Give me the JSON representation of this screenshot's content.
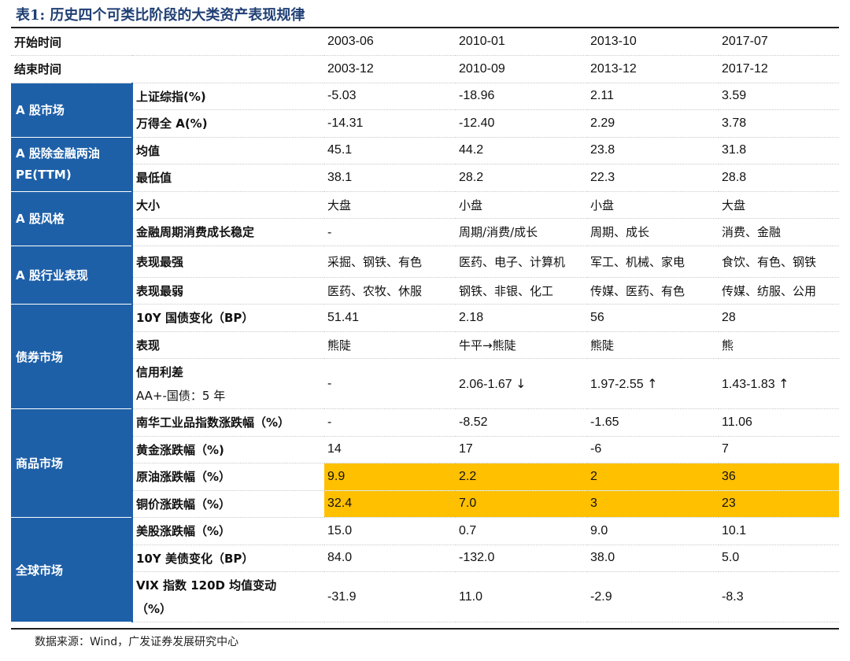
{
  "title": "表1: 历史四个可类比阶段的大类资产表现规律",
  "header_rows": [
    {
      "label": "开始时间",
      "values": [
        "2003-06",
        "2010-01",
        "2013-10",
        "2017-07"
      ]
    },
    {
      "label": "结束时间",
      "values": [
        "2003-12",
        "2010-09",
        "2013-12",
        "2017-12"
      ]
    }
  ],
  "groups": {
    "a_market": {
      "label": "A 股市场",
      "rows": [
        {
          "label": "上证综指(%)",
          "values": [
            "-5.03",
            "-18.96",
            "2.11",
            "3.59"
          ]
        },
        {
          "label": "万得全 A(%)",
          "values": [
            "-14.31",
            "-12.40",
            "2.29",
            "3.78"
          ]
        }
      ]
    },
    "pe": {
      "label_line1": "A 股除金融两油",
      "label_line2": "PE(TTM)",
      "rows": [
        {
          "label": "均值",
          "values": [
            "45.1",
            "44.2",
            "23.8",
            "31.8"
          ]
        },
        {
          "label": "最低值",
          "values": [
            "38.1",
            "28.2",
            "22.3",
            "28.8"
          ]
        }
      ]
    },
    "style": {
      "label": "A 股风格",
      "rows": [
        {
          "label": "大小",
          "values": [
            "大盘",
            "小盘",
            "小盘",
            "大盘"
          ]
        },
        {
          "label": "金融周期消费成长稳定",
          "values": [
            "-",
            "周期/消费/成长",
            "周期、成长",
            "消费、金融"
          ]
        }
      ]
    },
    "industry": {
      "label": "A 股行业表现",
      "rows": [
        {
          "label": "表现最强",
          "values": [
            "采掘、钢铁、有色",
            "医药、电子、计算机",
            "军工、机械、家电",
            "食饮、有色、钢铁"
          ]
        },
        {
          "label": "表现最弱",
          "values": [
            "医药、农牧、休服",
            "钢铁、非银、化工",
            "传媒、医药、有色",
            "传媒、纺服、公用"
          ]
        }
      ]
    },
    "bond": {
      "label": "债券市场",
      "rows": [
        {
          "label": "10Y 国债变化（BP）",
          "values": [
            "51.41",
            "2.18",
            "56",
            "28"
          ]
        },
        {
          "label": "表现",
          "values": [
            "熊陡",
            "牛平→熊陡",
            "熊陡",
            "熊"
          ]
        },
        {
          "label_line1": "信用利差",
          "label_line2": "AA+-国债：5 年",
          "values": [
            "-",
            "2.06-1.67",
            "1.97-2.55",
            "1.43-1.83"
          ],
          "arrows": [
            "",
            "↓",
            "↑",
            "↑"
          ]
        }
      ]
    },
    "commodity": {
      "label": "商品市场",
      "rows": [
        {
          "label": "南华工业品指数涨跌幅（%）",
          "values": [
            "-",
            "-8.52",
            "-1.65",
            "11.06"
          ]
        },
        {
          "label": "黄金涨跌幅（%)",
          "values": [
            "14",
            "17",
            "-6",
            "7"
          ]
        },
        {
          "label": "原油涨跌幅（%）",
          "values": [
            "9.9",
            "2.2",
            "2",
            "36"
          ]
        },
        {
          "label": "铜价涨跌幅（%）",
          "values": [
            "32.4",
            "7.0",
            "3",
            "23"
          ]
        }
      ]
    },
    "global": {
      "label": "全球市场",
      "rows": [
        {
          "label": "美股涨跌幅（%）",
          "values": [
            "15.0",
            "0.7",
            "9.0",
            "10.1"
          ]
        },
        {
          "label": "10Y 美债变化（BP）",
          "values": [
            "84.0",
            "-132.0",
            "38.0",
            "5.0"
          ]
        },
        {
          "label_line1": "VIX 指数 120D 均值变动",
          "label_line2": "（%）",
          "values": [
            "-31.9",
            "11.0",
            "-2.9",
            "-8.3"
          ]
        }
      ]
    }
  },
  "colors": {
    "category_bg": "#1e60a8",
    "highlight": "#ffc000",
    "title": "#1f3f74"
  },
  "source": "数据来源：Wind，广发证券发展研究中心"
}
